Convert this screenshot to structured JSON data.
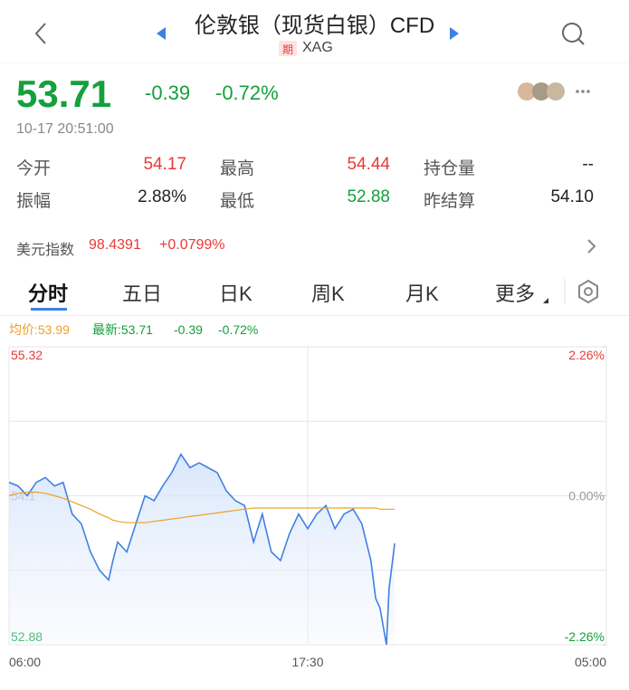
{
  "header": {
    "title": "伦敦银（现货白银）CFD",
    "tag": "期",
    "symbol": "XAG"
  },
  "quote": {
    "price": "53.71",
    "change": "-0.39",
    "change_pct": "-0.72%",
    "time": "10-17 20:51:00"
  },
  "stats": [
    [
      "今开",
      "54.17"
    ],
    [
      "最高",
      "54.44"
    ],
    [
      "持仓量",
      "--"
    ],
    [
      "振幅",
      "2.88%"
    ],
    [
      "最低",
      "52.88"
    ],
    [
      "昨结算",
      "54.10"
    ]
  ],
  "index": {
    "label": "美元指数",
    "value": "98.4391",
    "change": "+0.0799%"
  },
  "tabs": [
    "分时",
    "五日",
    "日K",
    "周K",
    "月K",
    "更多"
  ],
  "chart_data": {
    "type": "line",
    "info": {
      "avg": "均价:53.99",
      "last": "最新:53.71",
      "change": "-0.39",
      "change_pct": "-0.72%"
    },
    "x": [
      "06:00",
      "06:21",
      "06:42",
      "07:03",
      "07:24",
      "07:45",
      "08:05",
      "08:26",
      "08:47",
      "09:08",
      "09:29",
      "09:50",
      "10:00",
      "10:11",
      "10:32",
      "10:53",
      "11:14",
      "11:35",
      "11:55",
      "12:16",
      "12:37",
      "12:58",
      "13:19",
      "13:40",
      "14:01",
      "14:22",
      "14:43",
      "15:04",
      "15:25",
      "15:45",
      "16:06",
      "16:27",
      "16:48",
      "17:09",
      "17:30",
      "17:51",
      "18:12",
      "18:33",
      "18:54",
      "19:15",
      "19:35",
      "19:56",
      "20:07",
      "20:17",
      "20:32",
      "20:38",
      "20:51"
    ],
    "series": [
      {
        "color": "#3f80e4",
        "values": [
          54.21,
          54.18,
          54.1,
          54.21,
          54.25,
          54.18,
          54.21,
          53.95,
          53.87,
          53.64,
          53.49,
          53.41,
          53.57,
          53.72,
          53.64,
          53.87,
          54.1,
          54.06,
          54.18,
          54.29,
          54.44,
          54.33,
          54.37,
          54.33,
          54.29,
          54.14,
          54.06,
          54.02,
          53.72,
          53.95,
          53.64,
          53.57,
          53.79,
          53.95,
          53.83,
          53.95,
          54.02,
          53.83,
          53.95,
          53.99,
          53.87,
          53.57,
          53.26,
          53.18,
          52.88,
          53.34,
          53.71
        ]
      },
      {
        "color": "#f0a028",
        "values": [
          54.1,
          54.12,
          54.13,
          54.13,
          54.12,
          54.1,
          54.08,
          54.05,
          54.02,
          53.99,
          53.95,
          53.92,
          53.9,
          53.89,
          53.88,
          53.88,
          53.88,
          53.89,
          53.9,
          53.91,
          53.92,
          53.93,
          53.94,
          53.95,
          53.96,
          53.97,
          53.98,
          53.99,
          54.0,
          54.0,
          54.0,
          54.0,
          54.0,
          54.0,
          54.0,
          54.0,
          54.0,
          54.0,
          54.0,
          54.0,
          54.0,
          54.0,
          54.0,
          53.99,
          53.99,
          53.99,
          53.99
        ]
      }
    ],
    "ylim": [
      52.88,
      55.32
    ],
    "yticks": [
      55.32,
      54.1,
      52.88
    ],
    "y2lim": [
      -2.26,
      2.26
    ],
    "y2ticks": [
      {
        "value": 2.26,
        "label": "2.26%"
      },
      {
        "value": 0,
        "label": "0.00%"
      },
      {
        "value": -2.26,
        "label": "-2.26%"
      }
    ],
    "xticks": [
      "06:00",
      "17:30",
      "05:00"
    ],
    "grid": true
  }
}
